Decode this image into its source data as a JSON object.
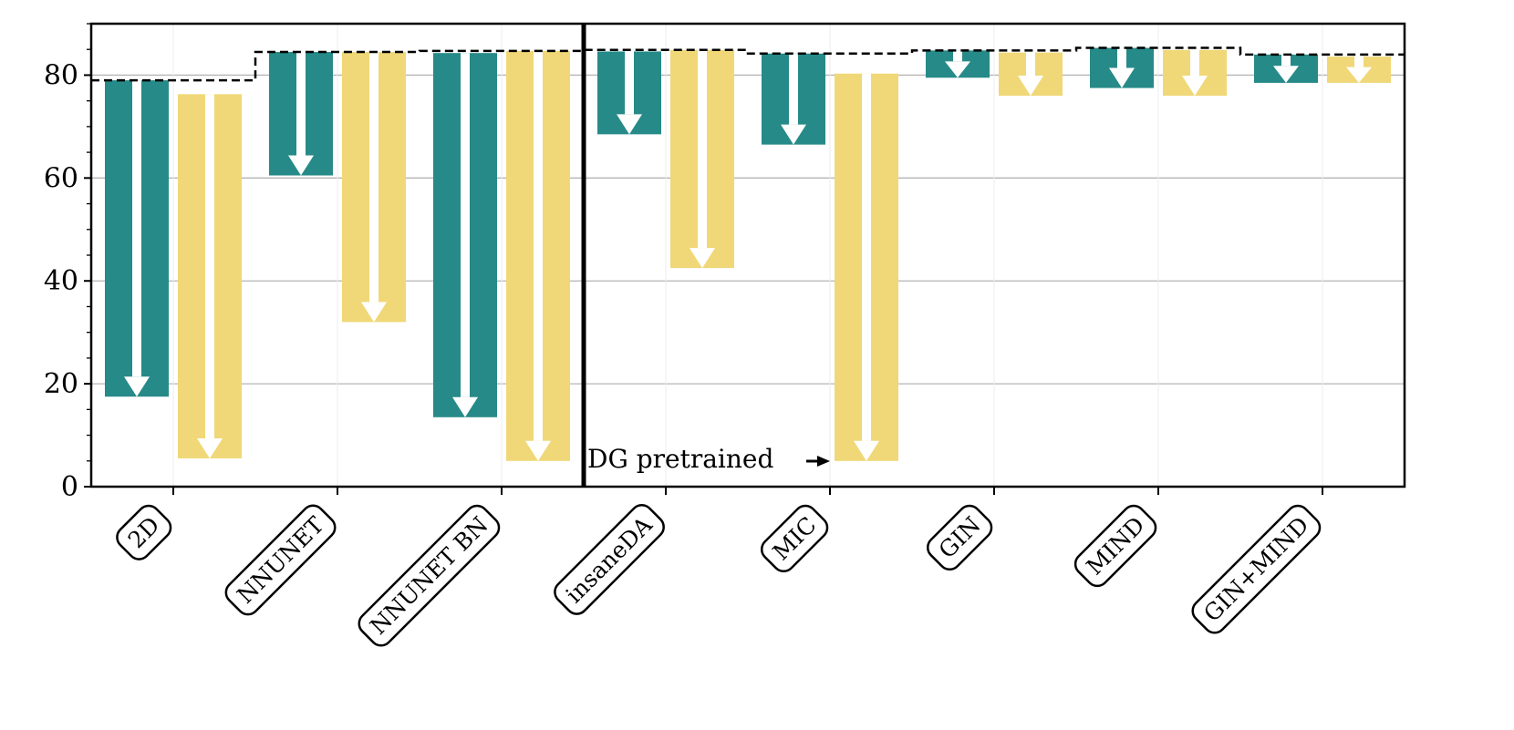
{
  "chart_data": {
    "type": "bar",
    "categories": [
      "2D",
      "NNUNET",
      "NNUNET BN",
      "insaneDA",
      "MIC",
      "GIN",
      "MIND",
      "GIN+MIND"
    ],
    "series": [
      {
        "color": "#268a88",
        "top": [
          79,
          84.5,
          84.3,
          84.6,
          84.2,
          84.8,
          85.3,
          84.0
        ],
        "bottom": [
          17.5,
          60.5,
          13.5,
          68.5,
          66.5,
          79.5,
          77.5,
          78.5
        ]
      },
      {
        "color": "#f0d878",
        "top": [
          76.3,
          84.5,
          84.7,
          84.9,
          80.3,
          84.4,
          84.9,
          83.6
        ],
        "bottom": [
          5.5,
          32,
          5,
          42.5,
          5,
          76,
          76,
          78.5
        ]
      }
    ],
    "reference_line": {
      "style": "dashed",
      "color": "#000000"
    },
    "separator_after_index": 2,
    "annotation": "DG pretrained",
    "y_ticks": [
      0,
      20,
      40,
      60,
      80
    ],
    "ylim": [
      0,
      90
    ],
    "grid": true,
    "title": "",
    "xlabel": "",
    "ylabel": ""
  }
}
